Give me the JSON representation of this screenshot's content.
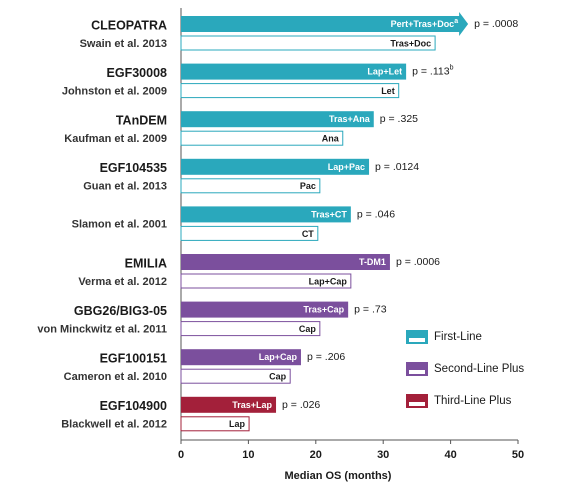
{
  "chart_data": {
    "type": "paired-bar",
    "xlabel": "Median OS (months)",
    "xlim": [
      0,
      50
    ],
    "xticks": [
      0,
      10,
      20,
      30,
      40,
      50
    ],
    "series": [
      {
        "name": "First-Line",
        "color": "#2aa8bc",
        "trials": [
          {
            "name": "CLEOPATRA",
            "citation": "Swain et al. 2013",
            "p": "p = .0008",
            "arrow": true,
            "bars": [
              {
                "label": "Pert+Tras+Doc",
                "label_note": "a",
                "value": 42.6
              },
              {
                "label": "Tras+Doc",
                "value": 37.7
              }
            ]
          },
          {
            "name": "EGF30008",
            "citation": "Johnston et al. 2009",
            "p": "p = .113",
            "p_note": "b",
            "bars": [
              {
                "label": "Lap+Let",
                "value": 33.4
              },
              {
                "label": "Let",
                "value": 32.3
              }
            ]
          },
          {
            "name": "TAnDEM",
            "citation": "Kaufman et al. 2009",
            "p": "p = .325",
            "bars": [
              {
                "label": "Tras+Ana",
                "value": 28.6
              },
              {
                "label": "Ana",
                "value": 24.0
              }
            ]
          },
          {
            "name": "EGF104535",
            "citation": "Guan et al. 2013",
            "p": "p = .0124",
            "bars": [
              {
                "label": "Lap+Pac",
                "value": 27.9
              },
              {
                "label": "Pac",
                "value": 20.6
              }
            ]
          },
          {
            "citation": "Slamon et al. 2001",
            "p": "p = .046",
            "bars": [
              {
                "label": "Tras+CT",
                "value": 25.2
              },
              {
                "label": "CT",
                "value": 20.3
              }
            ]
          }
        ]
      },
      {
        "name": "Second-Line Plus",
        "color": "#7b4f9d",
        "trials": [
          {
            "name": "EMILIA",
            "citation": "Verma et al. 2012",
            "p": "p = .0006",
            "bars": [
              {
                "label": "T-DM1",
                "value": 31.0
              },
              {
                "label": "Lap+Cap",
                "value": 25.2
              }
            ]
          },
          {
            "name": "GBG26/BIG3-05",
            "citation": "von Minckwitz et al. 2011",
            "p": "p = .73",
            "bars": [
              {
                "label": "Tras+Cap",
                "value": 24.8
              },
              {
                "label": "Cap",
                "value": 20.6
              }
            ]
          },
          {
            "name": "EGF100151",
            "citation": "Cameron et al. 2010",
            "p": "p = .206",
            "bars": [
              {
                "label": "Lap+Cap",
                "value": 17.8
              },
              {
                "label": "Cap",
                "value": 16.2
              }
            ]
          }
        ]
      },
      {
        "name": "Third-Line Plus",
        "color": "#a3203a",
        "trials": [
          {
            "name": "EGF104900",
            "citation": "Blackwell et al. 2012",
            "p": "p = .026",
            "bars": [
              {
                "label": "Tras+Lap",
                "value": 14.1
              },
              {
                "label": "Lap",
                "value": 10.1
              }
            ]
          }
        ]
      }
    ]
  }
}
